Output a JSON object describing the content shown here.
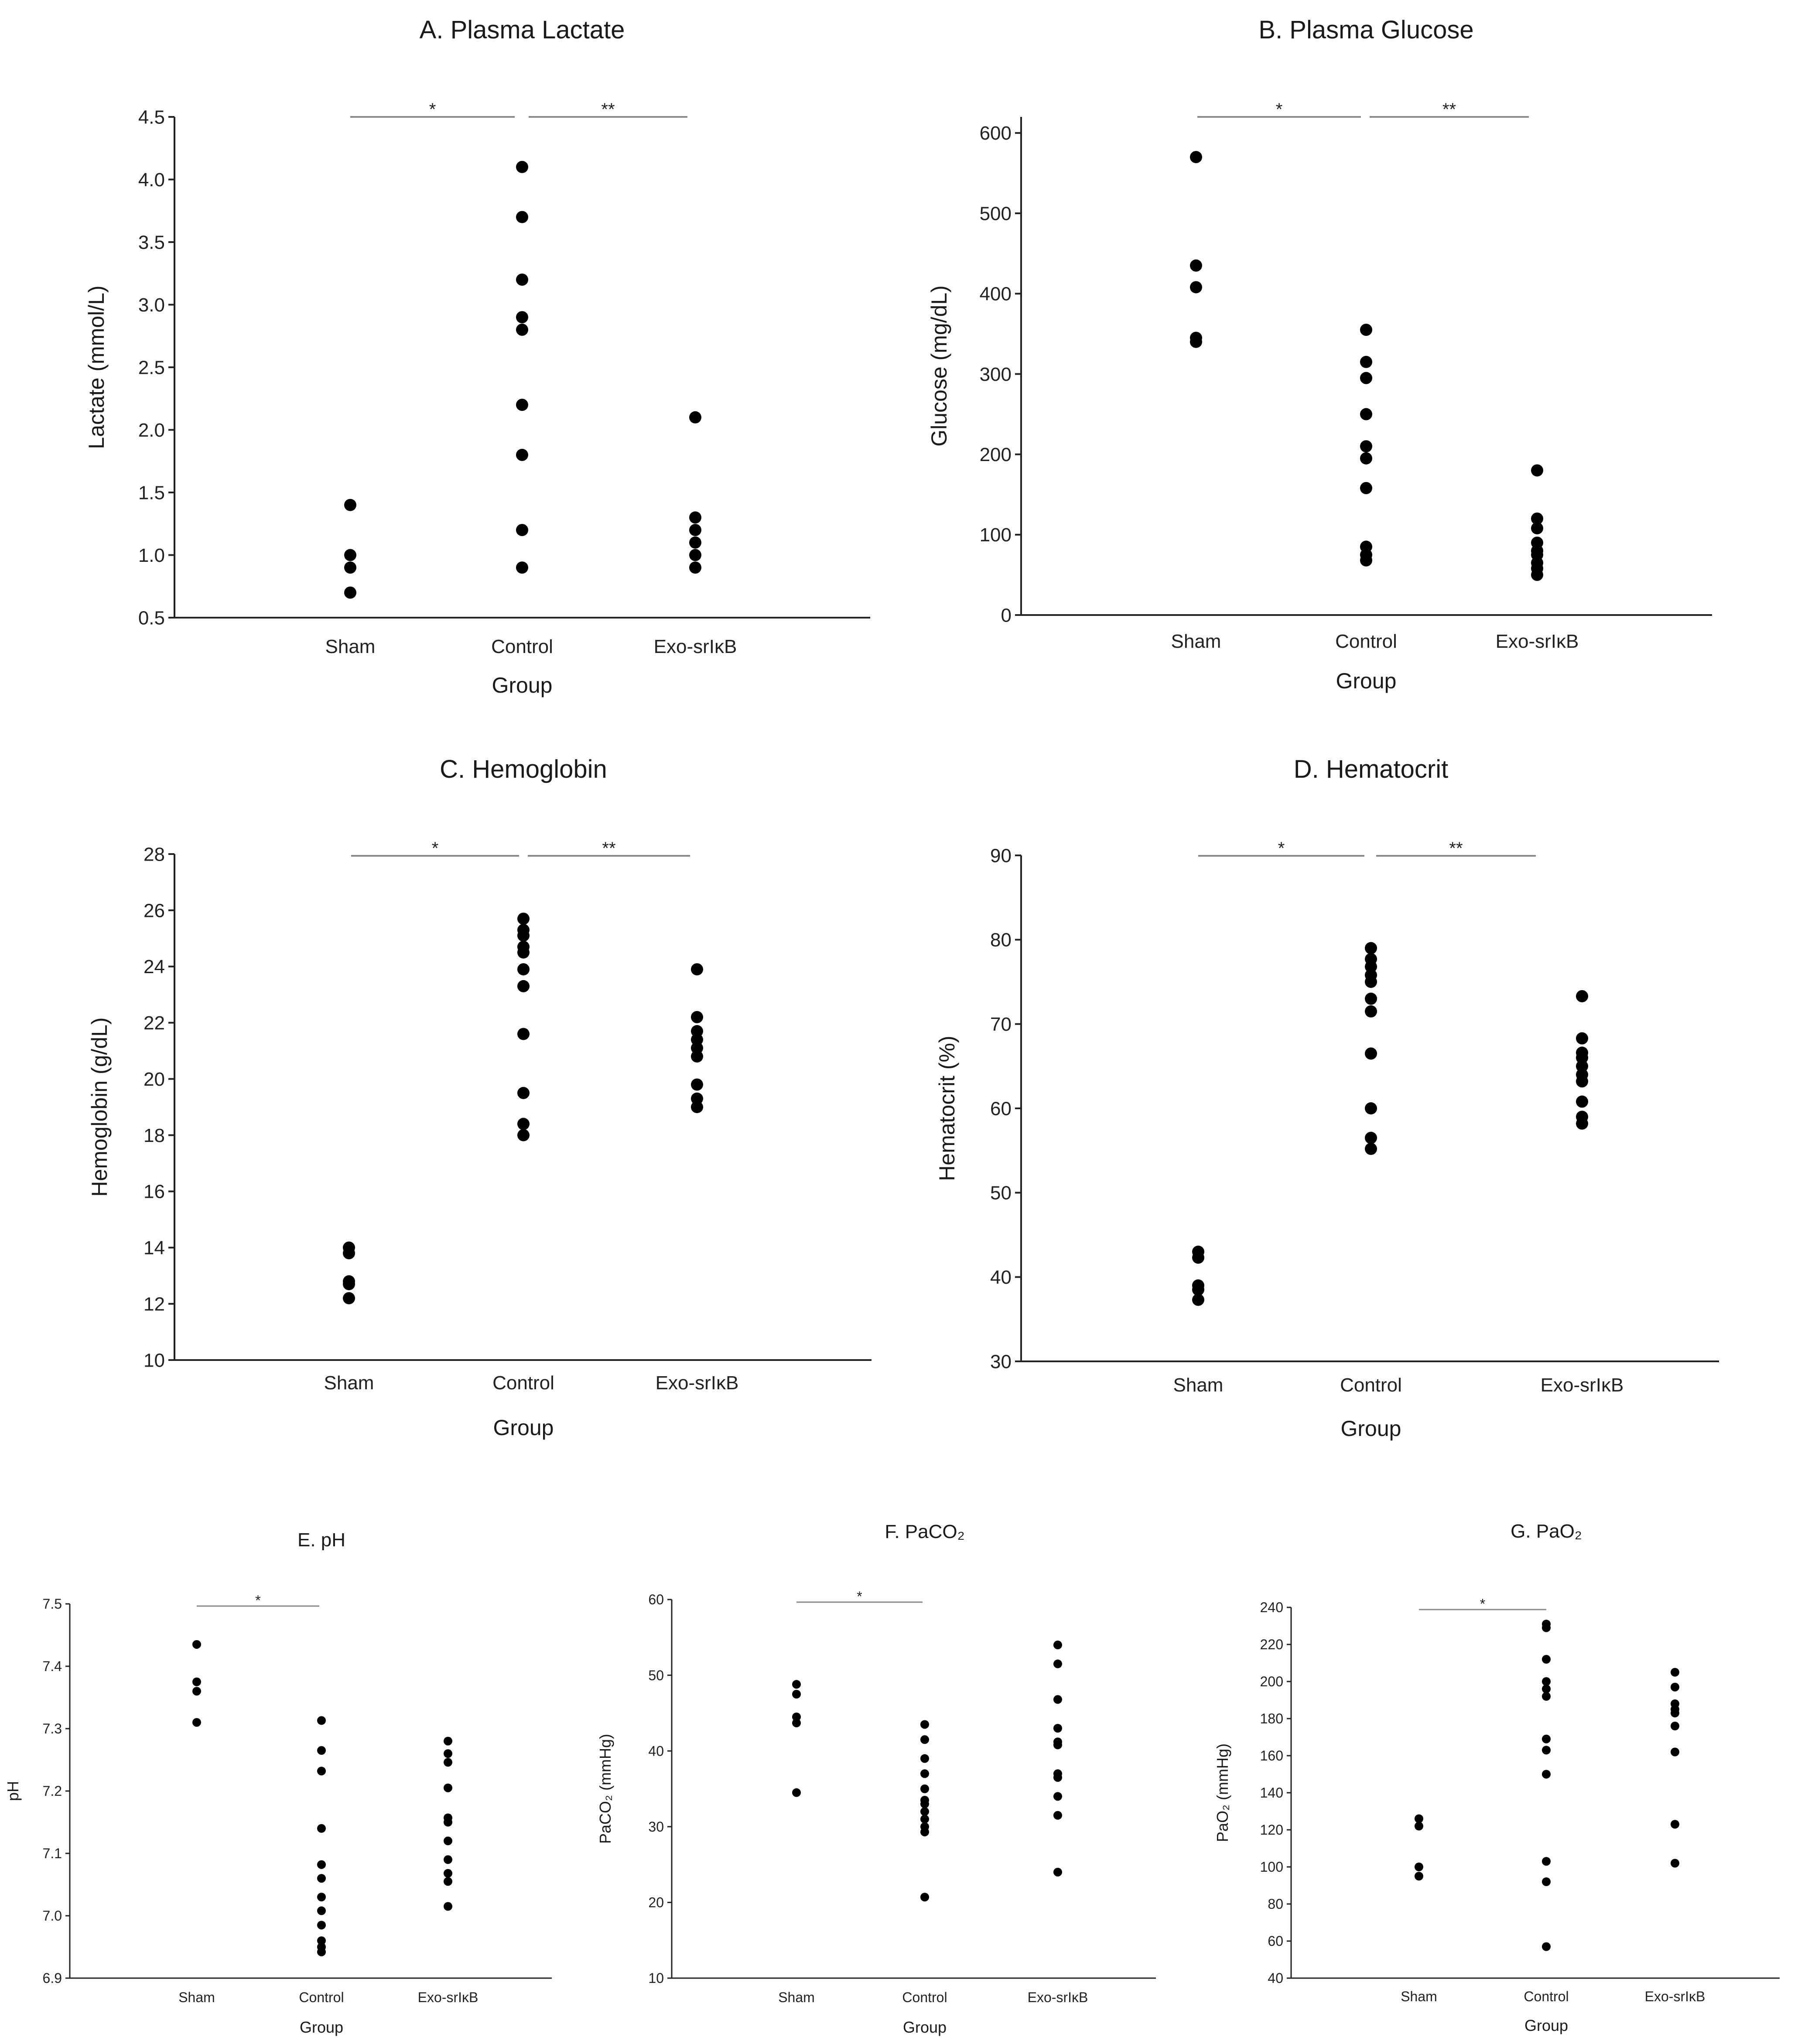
{
  "chart_data": [
    {
      "id": "A",
      "type": "scatter",
      "title": "A. Plasma Lactate",
      "ylabel": "Lactate (mmol/L)",
      "xlabel": "Group",
      "categories": [
        "Sham",
        "Control",
        "Exo-srIκB"
      ],
      "ylim": [
        0.5,
        4.5
      ],
      "yticks": [
        "0.5",
        "1.0",
        "1.5",
        "2.0",
        "2.5",
        "3.0",
        "3.5",
        "4.0",
        "4.5"
      ],
      "values": [
        [
          1.4,
          1.0,
          0.9,
          0.7
        ],
        [
          4.1,
          3.7,
          3.2,
          2.9,
          2.8,
          2.2,
          1.8,
          1.2,
          0.9
        ],
        [
          2.1,
          1.3,
          1.2,
          1.1,
          1.0,
          0.9
        ]
      ],
      "significance": [
        {
          "from": "Sham",
          "to": "Control",
          "label": "*"
        },
        {
          "from": "Control",
          "to": "Exo-srIκB",
          "label": "**"
        }
      ]
    },
    {
      "id": "B",
      "type": "scatter",
      "title": "B. Plasma Glucose",
      "ylabel": "Glucose (mg/dL)",
      "xlabel": "Group",
      "categories": [
        "Sham",
        "Control",
        "Exo-srIκB"
      ],
      "ylim": [
        0,
        620
      ],
      "yticks": [
        "0",
        "100",
        "200",
        "300",
        "400",
        "500",
        "600"
      ],
      "values": [
        [
          570,
          435,
          408,
          345,
          340
        ],
        [
          355,
          315,
          295,
          250,
          210,
          195,
          158,
          85,
          75,
          68
        ],
        [
          180,
          120,
          108,
          90,
          80,
          75,
          65,
          58,
          50
        ]
      ],
      "significance": [
        {
          "from": "Sham",
          "to": "Control",
          "label": "*"
        },
        {
          "from": "Control",
          "to": "Exo-srIκB",
          "label": "**"
        }
      ]
    },
    {
      "id": "C",
      "type": "scatter",
      "title": "C. Hemoglobin",
      "ylabel": "Hemoglobin (g/dL)",
      "xlabel": "Group",
      "categories": [
        "Sham",
        "Control",
        "Exo-srIκB"
      ],
      "ylim": [
        10,
        28
      ],
      "yticks": [
        "10",
        "12",
        "14",
        "16",
        "18",
        "20",
        "22",
        "24",
        "26",
        "28"
      ],
      "values": [
        [
          14.0,
          13.8,
          12.8,
          12.7,
          12.2
        ],
        [
          25.7,
          25.3,
          25.1,
          24.7,
          24.5,
          23.9,
          23.3,
          21.6,
          19.5,
          18.4,
          18.0
        ],
        [
          23.9,
          22.2,
          21.7,
          21.4,
          21.1,
          20.8,
          19.8,
          19.3,
          19.0
        ]
      ],
      "significance": [
        {
          "from": "Sham",
          "to": "Control",
          "label": "*"
        },
        {
          "from": "Control",
          "to": "Exo-srIκB",
          "label": "**"
        }
      ]
    },
    {
      "id": "D",
      "type": "scatter",
      "title": "D. Hematocrit",
      "ylabel": "Hematocrit (%)",
      "xlabel": "Group",
      "categories": [
        "Sham",
        "Control",
        "Exo-srIκB"
      ],
      "ylim": [
        30,
        90
      ],
      "yticks": [
        "30",
        "40",
        "50",
        "60",
        "70",
        "80",
        "90"
      ],
      "values": [
        [
          43.0,
          42.3,
          39.0,
          38.5,
          37.3
        ],
        [
          79.0,
          77.7,
          76.8,
          75.8,
          75.0,
          73.0,
          71.5,
          66.5,
          60.0,
          56.5,
          55.2
        ],
        [
          73.3,
          68.3,
          66.6,
          66.0,
          65.0,
          64.0,
          63.2,
          60.8,
          59.0,
          58.2
        ]
      ],
      "significance": [
        {
          "from": "Sham",
          "to": "Control",
          "label": "*"
        },
        {
          "from": "Control",
          "to": "Exo-srIκB",
          "label": "**"
        }
      ]
    },
    {
      "id": "E",
      "type": "scatter",
      "title": "E. pH",
      "ylabel": "pH",
      "xlabel": "Group",
      "categories": [
        "Sham",
        "Control",
        "Exo-srIκB"
      ],
      "ylim": [
        6.9,
        7.5
      ],
      "yticks": [
        "6.9",
        "7.0",
        "7.1",
        "7.2",
        "7.3",
        "7.4",
        "7.5"
      ],
      "values": [
        [
          7.435,
          7.375,
          7.36,
          7.31
        ],
        [
          7.313,
          7.265,
          7.232,
          7.14,
          7.082,
          7.06,
          7.03,
          7.008,
          6.985,
          6.96,
          6.95,
          6.942
        ],
        [
          7.28,
          7.26,
          7.246,
          7.205,
          7.157,
          7.15,
          7.12,
          7.09,
          7.068,
          7.055,
          7.015
        ]
      ],
      "significance": [
        {
          "from": "Sham",
          "to": "Control",
          "label": "*"
        }
      ]
    },
    {
      "id": "F",
      "type": "scatter",
      "title": "F. PaCO₂",
      "ylabel": "PaCO₂ (mmHg)",
      "xlabel": "Group",
      "categories": [
        "Sham",
        "Control",
        "Exo-srIκB"
      ],
      "ylim": [
        10,
        60
      ],
      "yticks": [
        "10",
        "20",
        "30",
        "40",
        "50",
        "60"
      ],
      "values": [
        [
          48.8,
          47.5,
          44.5,
          43.7,
          34.5
        ],
        [
          43.5,
          41.5,
          39.0,
          37.0,
          35.0,
          33.5,
          33.0,
          32.0,
          31.0,
          30.0,
          29.3,
          20.7
        ],
        [
          54.0,
          51.5,
          46.8,
          43.0,
          41.2,
          40.8,
          37.0,
          36.5,
          34.0,
          31.5,
          24.0
        ]
      ],
      "significance": [
        {
          "from": "Sham",
          "to": "Control",
          "label": "*"
        }
      ]
    },
    {
      "id": "G",
      "type": "scatter",
      "title": "G. PaO₂",
      "ylabel": "PaO₂ (mmHg)",
      "xlabel": "Group",
      "categories": [
        "Sham",
        "Control",
        "Exo-srIκB"
      ],
      "ylim": [
        40,
        240
      ],
      "yticks": [
        "40",
        "60",
        "80",
        "100",
        "120",
        "140",
        "160",
        "180",
        "200",
        "220",
        "240"
      ],
      "values": [
        [
          126,
          122,
          100,
          95
        ],
        [
          231,
          229,
          212,
          200,
          196,
          192,
          169,
          163,
          150,
          103,
          92,
          57
        ],
        [
          205,
          197,
          188,
          185,
          183,
          176,
          162,
          123,
          102
        ]
      ],
      "significance": [
        {
          "from": "Sham",
          "to": "Control",
          "label": "*"
        }
      ]
    }
  ]
}
